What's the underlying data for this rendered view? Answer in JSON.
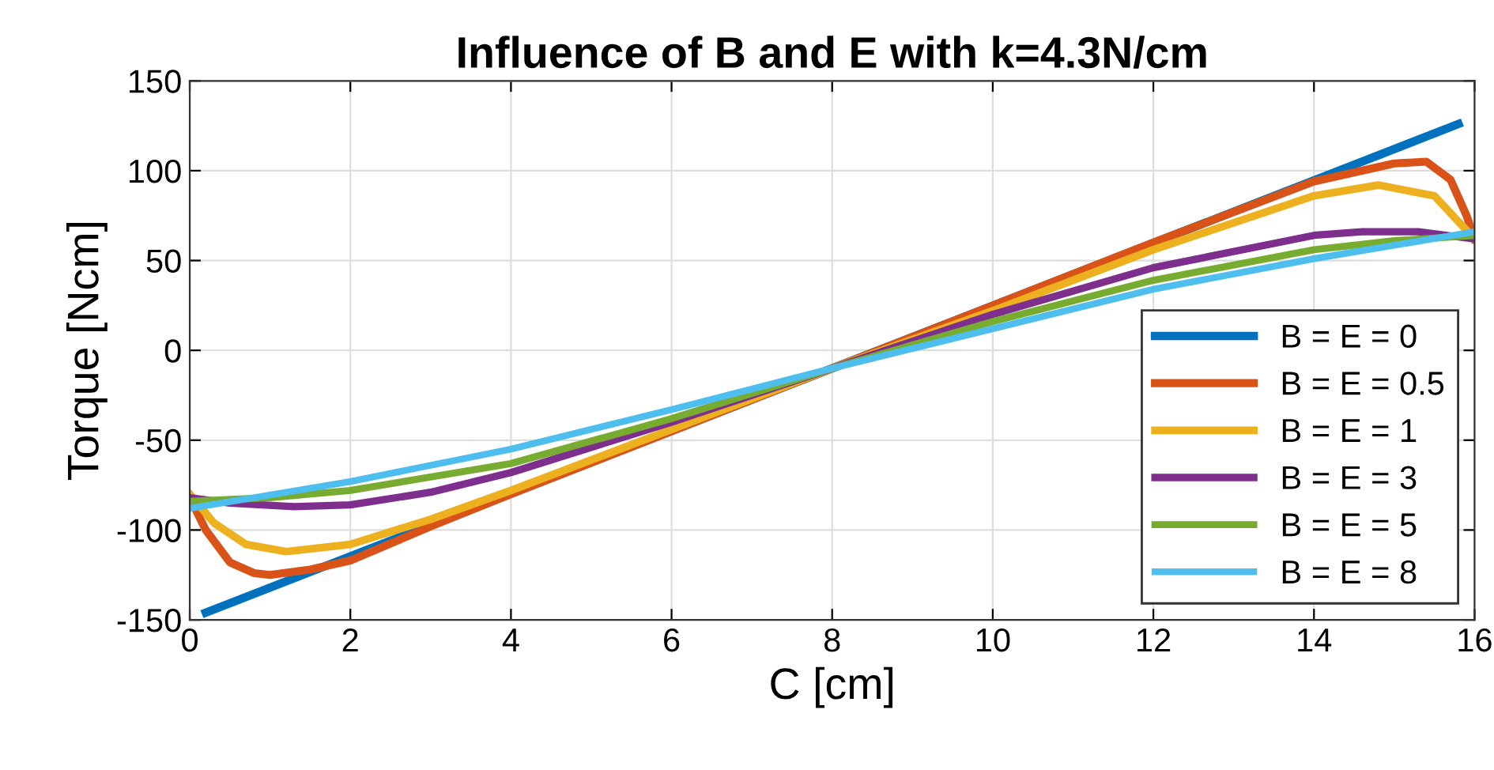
{
  "chart_data": {
    "type": "line",
    "title": "Influence of B and E with k=4.3N/cm",
    "xlabel": "C [cm]",
    "ylabel": "Torque [Ncm]",
    "xlim": [
      0,
      16
    ],
    "xticks": [
      0,
      2,
      4,
      6,
      8,
      10,
      12,
      14,
      16
    ],
    "ylim": [
      -150,
      150
    ],
    "yticks": [
      -150,
      -100,
      -50,
      0,
      50,
      100,
      150
    ],
    "grid": true,
    "legend": "bottom right",
    "line_style": "solid",
    "marker": "none",
    "series": [
      {
        "name": "B = E = 0",
        "color": "#0072bd",
        "x": [
          0.2,
          15.8
        ],
        "values": [
          -146,
          126
        ]
      },
      {
        "name": "B = E = 0.5",
        "color": "#d95319",
        "x": [
          0,
          0.2,
          0.5,
          0.8,
          1,
          1.5,
          2,
          3,
          4,
          6,
          8,
          10,
          12,
          14,
          15,
          15.4,
          15.7,
          15.9,
          16
        ],
        "values": [
          -82,
          -100,
          -118,
          -124,
          -125,
          -122,
          -117,
          -98,
          -80,
          -45,
          -10,
          25,
          60,
          94,
          104,
          105,
          95,
          75,
          62
        ]
      },
      {
        "name": "B = E = 1",
        "color": "#edb120",
        "x": [
          0,
          0.3,
          0.7,
          1.2,
          2,
          3,
          4,
          6,
          8,
          10,
          12,
          14,
          14.8,
          15.5,
          16
        ],
        "values": [
          -80,
          -96,
          -108,
          -112,
          -108,
          -94,
          -78,
          -44,
          -10,
          22,
          56,
          86,
          92,
          86,
          62
        ]
      },
      {
        "name": "B = E = 3",
        "color": "#7e2f8e",
        "x": [
          0,
          0.5,
          1.3,
          2,
          3,
          4,
          6,
          8,
          10,
          12,
          14,
          14.6,
          15.3,
          16
        ],
        "values": [
          -82,
          -85,
          -87,
          -86,
          -79,
          -68,
          -40,
          -10,
          20,
          46,
          64,
          66,
          66,
          62
        ]
      },
      {
        "name": "B = E = 5",
        "color": "#77ac30",
        "x": [
          0,
          1,
          2,
          4,
          6,
          8,
          10,
          12,
          14,
          15,
          16
        ],
        "values": [
          -84,
          -82,
          -78,
          -63,
          -38,
          -10,
          16,
          39,
          56,
          61,
          64
        ]
      },
      {
        "name": "B = E = 8",
        "color": "#4dbeee",
        "x": [
          0,
          2,
          4,
          6,
          8,
          10,
          12,
          14,
          16
        ],
        "values": [
          -88,
          -73,
          -55,
          -33,
          -10,
          12,
          34,
          51,
          66
        ]
      }
    ]
  }
}
